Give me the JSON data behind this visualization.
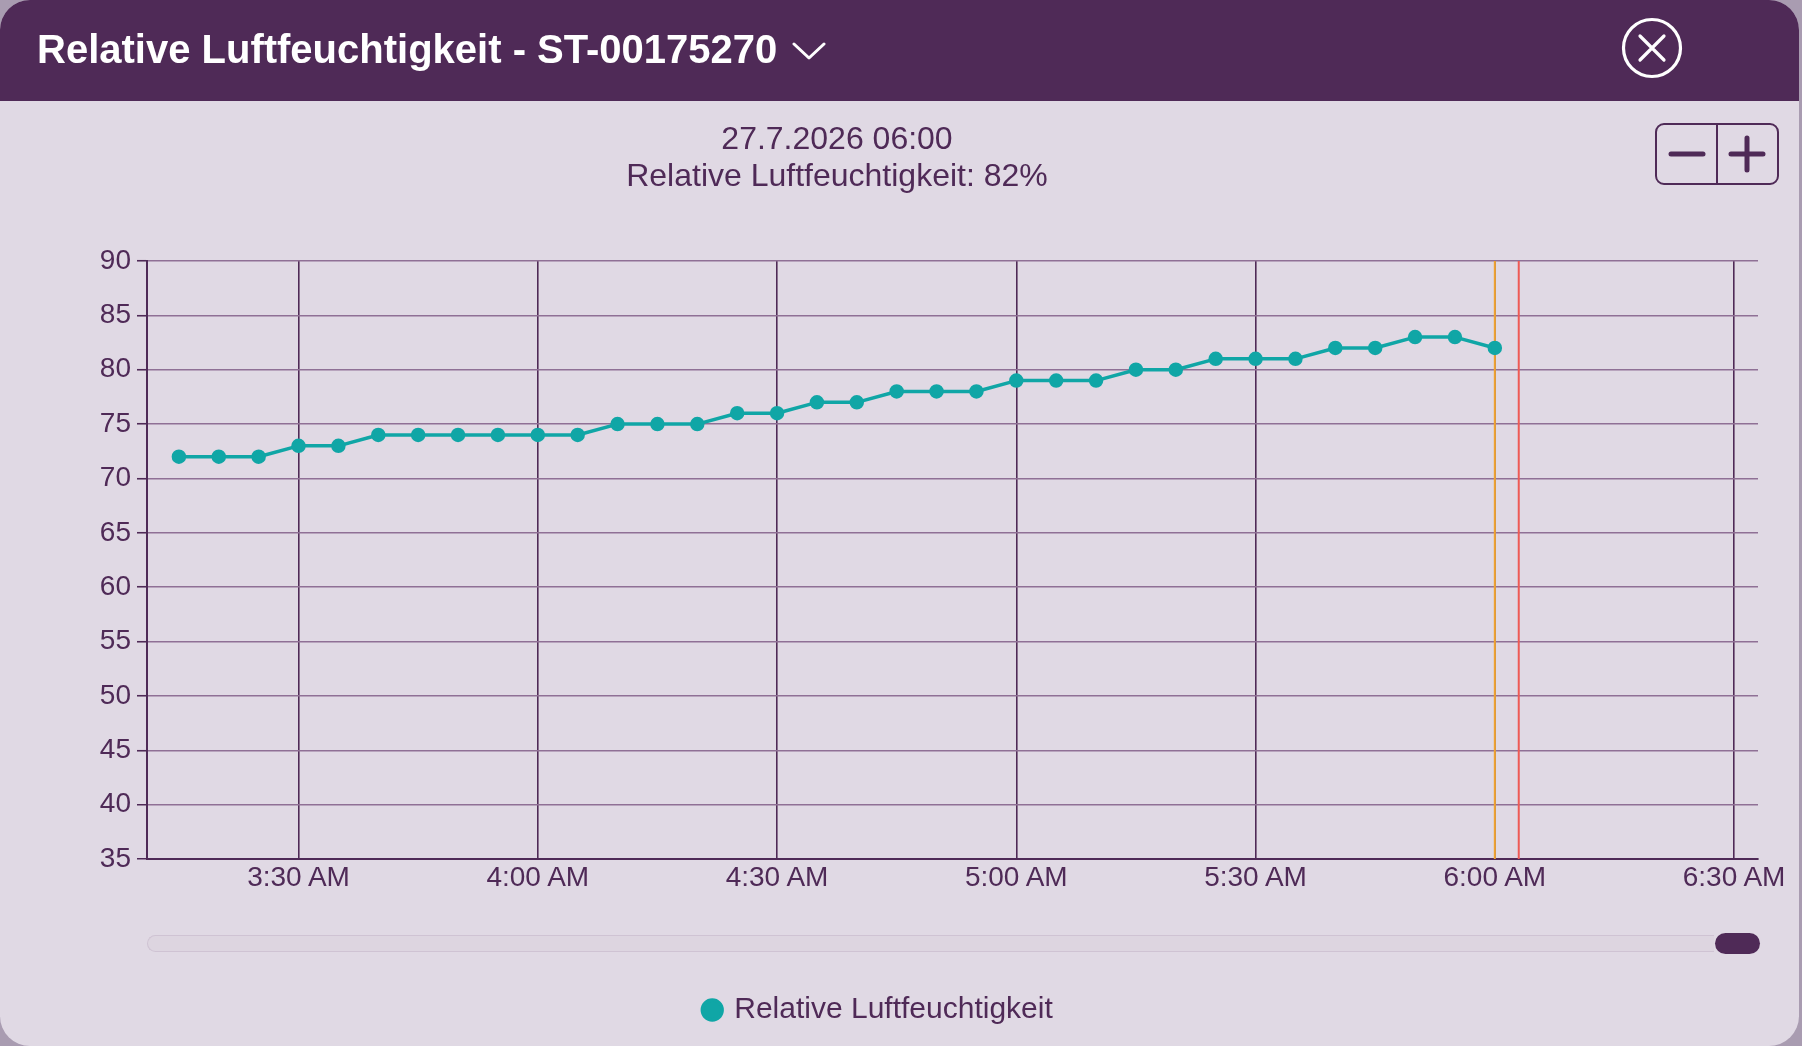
{
  "chart_data": {
    "type": "line",
    "title": "Relative Luftfeuchtigkeit - ST-00175270",
    "annotations": [
      "27.7.2026 06:00",
      "Relative Luftfeuchtigkeit: 82%"
    ],
    "x": [
      "2026-07-27T03:15",
      "2026-07-27T03:20",
      "2026-07-27T03:25",
      "2026-07-27T03:30",
      "2026-07-27T03:35",
      "2026-07-27T03:40",
      "2026-07-27T03:45",
      "2026-07-27T03:50",
      "2026-07-27T03:55",
      "2026-07-27T04:00",
      "2026-07-27T04:05",
      "2026-07-27T04:10",
      "2026-07-27T04:15",
      "2026-07-27T04:20",
      "2026-07-27T04:25",
      "2026-07-27T04:30",
      "2026-07-27T04:35",
      "2026-07-27T04:40",
      "2026-07-27T04:45",
      "2026-07-27T04:50",
      "2026-07-27T04:55",
      "2026-07-27T05:00",
      "2026-07-27T05:05",
      "2026-07-27T05:10",
      "2026-07-27T05:15",
      "2026-07-27T05:20",
      "2026-07-27T05:25",
      "2026-07-27T05:30",
      "2026-07-27T05:35",
      "2026-07-27T05:40",
      "2026-07-27T05:45",
      "2026-07-27T05:50",
      "2026-07-27T05:55",
      "2026-07-27T06:00"
    ],
    "series": [
      {
        "name": "Relative Luftfeuchtigkeit",
        "color": "#10a6a6",
        "values": [
          72,
          72,
          72,
          73,
          73,
          74,
          74,
          74,
          74,
          74,
          74,
          75,
          75,
          75,
          76,
          76,
          77,
          77,
          78,
          78,
          78,
          79,
          79,
          79,
          80,
          80,
          81,
          81,
          81,
          82,
          82,
          83,
          83,
          82
        ]
      }
    ],
    "xlim": [
      "2026-07-27T03:11",
      "2026-07-27T06:33"
    ],
    "xticks": [
      {
        "value": "2026-07-27T03:30",
        "label": "3:30 AM"
      },
      {
        "value": "2026-07-27T04:00",
        "label": "4:00 AM"
      },
      {
        "value": "2026-07-27T04:30",
        "label": "4:30 AM"
      },
      {
        "value": "2026-07-27T05:00",
        "label": "5:00 AM"
      },
      {
        "value": "2026-07-27T05:30",
        "label": "5:30 AM"
      },
      {
        "value": "2026-07-27T06:00",
        "label": "6:00 AM"
      },
      {
        "value": "2026-07-27T06:30",
        "label": "6:30 AM"
      }
    ],
    "ylim": [
      35,
      90
    ],
    "yticks": [
      35,
      40,
      45,
      50,
      55,
      60,
      65,
      70,
      75,
      80,
      85,
      90
    ],
    "grid": true,
    "legend": "bottom",
    "marker": "circle",
    "ref_lines": [
      {
        "axis": "x",
        "value": "2026-07-27T06:00",
        "color": "#f0a22e"
      },
      {
        "axis": "x",
        "value": "2026-07-27T06:03",
        "color": "#ee5a55"
      }
    ]
  }
}
